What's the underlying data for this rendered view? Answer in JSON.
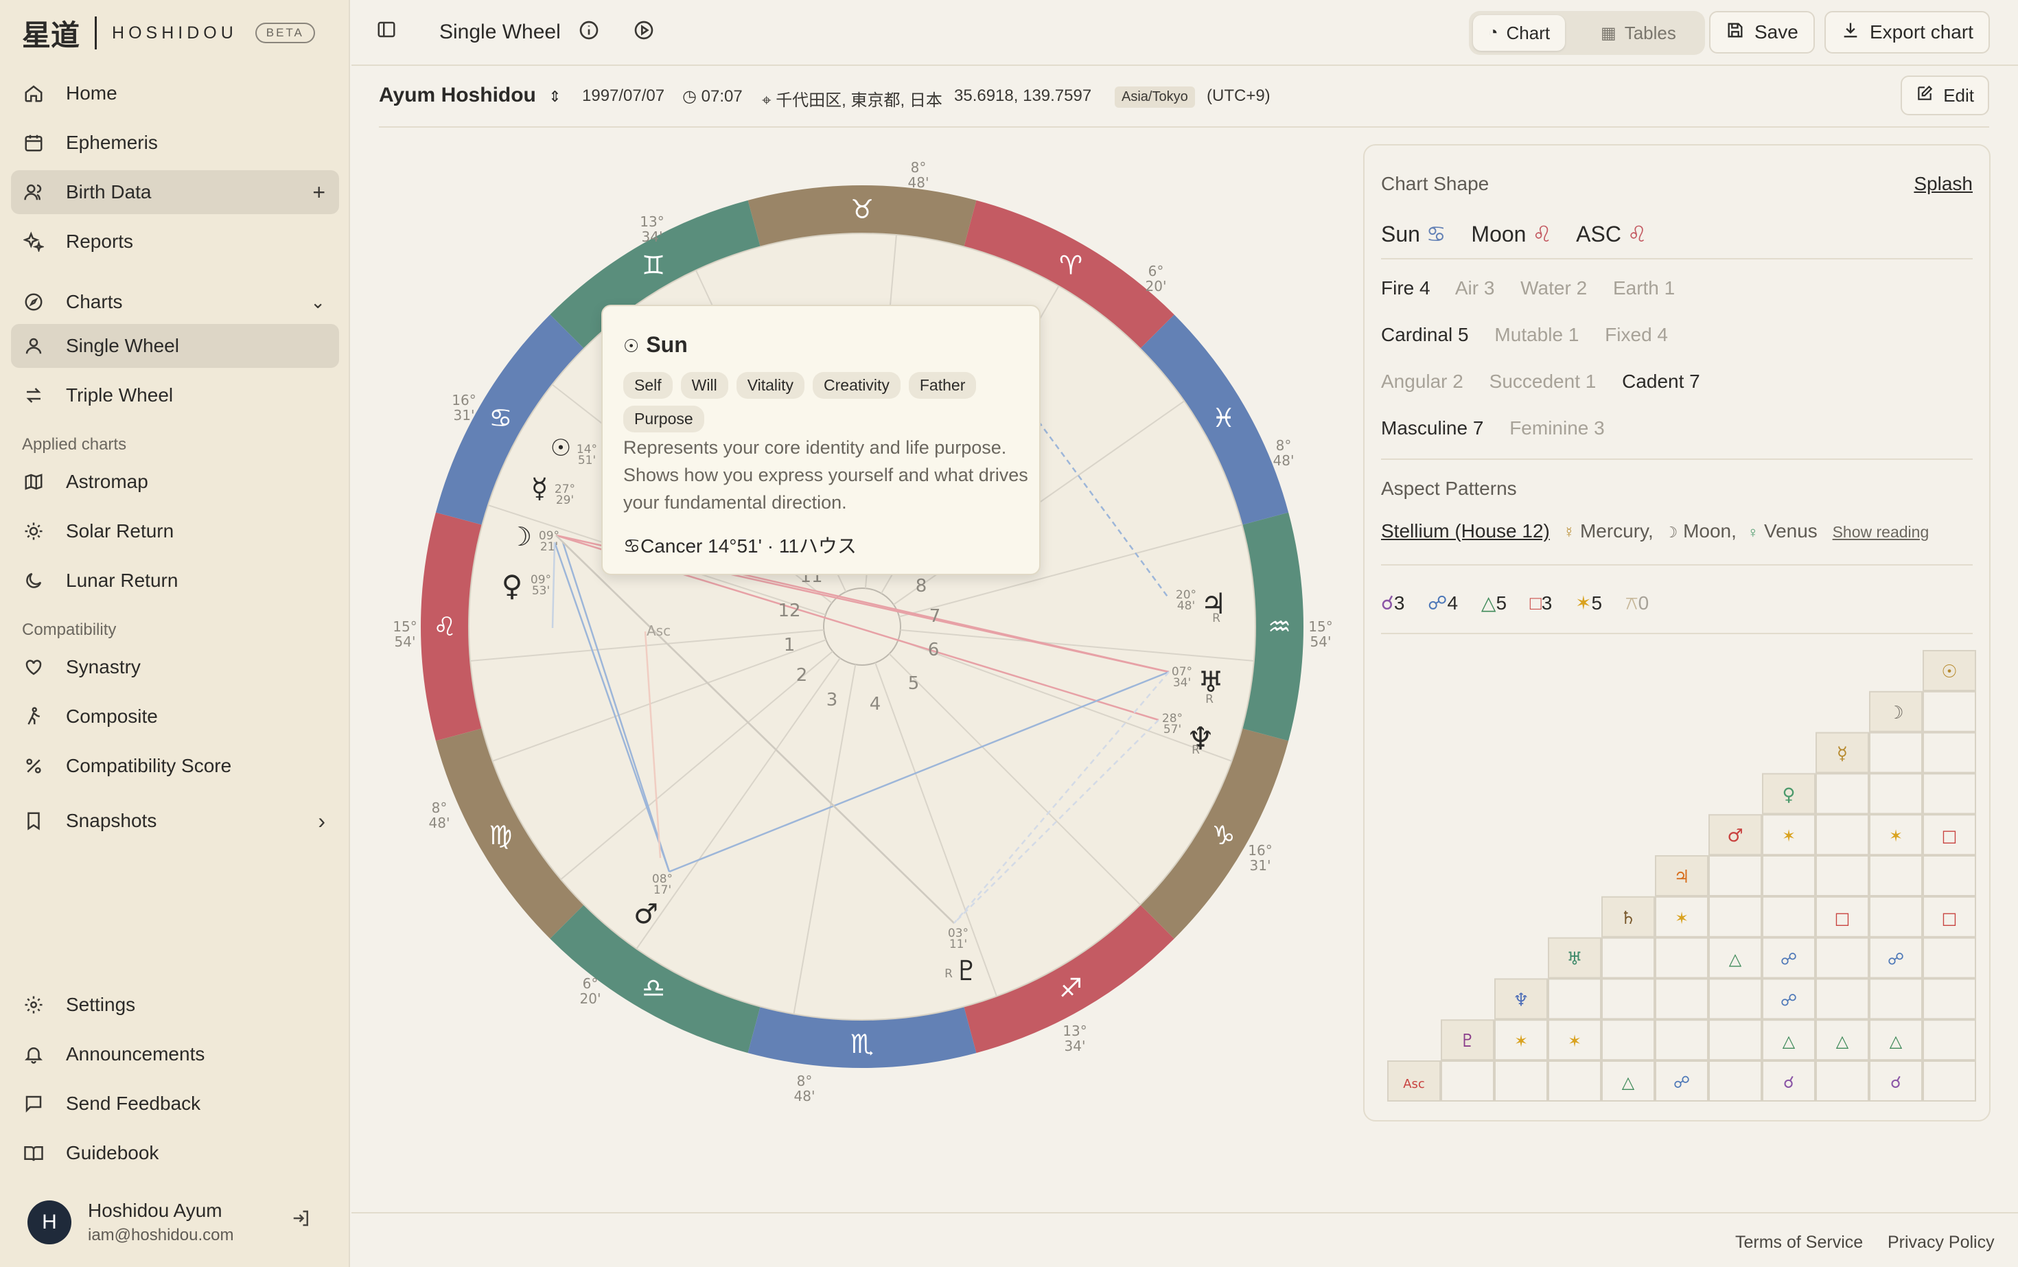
{
  "brand": {
    "kanji": "星道",
    "name": "HOSHIDOU",
    "badge": "BETA"
  },
  "sidebar": {
    "items": [
      {
        "label": "Home",
        "icon": "home-icon"
      },
      {
        "label": "Ephemeris",
        "icon": "calendar-icon"
      },
      {
        "label": "Birth Data",
        "icon": "users-icon",
        "active": true
      },
      {
        "label": "Reports",
        "icon": "sparkle-icon"
      },
      {
        "label": "Charts",
        "icon": "compass-icon"
      },
      {
        "label": "Single Wheel",
        "icon": "user-icon",
        "active": true
      },
      {
        "label": "Triple Wheel",
        "icon": "swap-icon"
      },
      {
        "label": "Astromap",
        "icon": "map-icon"
      },
      {
        "label": "Solar Return",
        "icon": "sun-icon"
      },
      {
        "label": "Lunar Return",
        "icon": "moon-icon"
      },
      {
        "label": "Synastry",
        "icon": "heart-icon"
      },
      {
        "label": "Composite",
        "icon": "person-icon"
      },
      {
        "label": "Compatibility Score",
        "icon": "percent-icon"
      },
      {
        "label": "Snapshots",
        "icon": "bookmark-icon"
      },
      {
        "label": "Settings",
        "icon": "gear-icon"
      },
      {
        "label": "Announcements",
        "icon": "bell-icon"
      },
      {
        "label": "Send Feedback",
        "icon": "message-icon"
      },
      {
        "label": "Guidebook",
        "icon": "book-icon"
      }
    ],
    "sections": [
      "Applied charts",
      "Compatibility"
    ],
    "user": {
      "initial": "H",
      "name": "Hoshidou Ayum",
      "email": "iam@hoshidou.com"
    }
  },
  "topbar": {
    "title": "Single Wheel",
    "tabs": [
      "Chart",
      "Tables"
    ],
    "save_label": "Save",
    "export_label": "Export chart"
  },
  "subject": {
    "name": "Ayum Hoshidou",
    "date": "1997/07/07",
    "time": "07:07",
    "place": "千代田区, 東京都, 日本",
    "coords": "35.6918, 139.7597",
    "tz": "Asia/Tokyo",
    "offset": "(UTC+9)",
    "edit_label": "Edit"
  },
  "wheel": {
    "cusp_labels": [
      {
        "deg": "8°",
        "min": "48'"
      },
      {
        "deg": "6°",
        "min": "20'"
      },
      {
        "deg": "8°",
        "min": "48'"
      },
      {
        "deg": "15°",
        "min": "54'"
      },
      {
        "deg": "16°",
        "min": "31'"
      },
      {
        "deg": "13°",
        "min": "34'"
      },
      {
        "deg": "8°",
        "min": "48'"
      },
      {
        "deg": "6°",
        "min": "20'"
      },
      {
        "deg": "8°",
        "min": "48'"
      },
      {
        "deg": "15°",
        "min": "54'"
      },
      {
        "deg": "16°",
        "min": "31'"
      },
      {
        "deg": "13°",
        "min": "34'"
      }
    ],
    "planet_degrees": [
      {
        "deg": "14°",
        "min": "51'"
      },
      {
        "deg": "27°",
        "min": "29'"
      },
      {
        "deg": "09°",
        "min": "21'"
      },
      {
        "deg": "09°",
        "min": "53'"
      },
      {
        "deg": "20°",
        "min": "48'"
      },
      {
        "deg": "07°",
        "min": "34'"
      },
      {
        "deg": "28°",
        "min": "57'"
      },
      {
        "deg": "08°",
        "min": "17'"
      },
      {
        "deg": "03°",
        "min": "11'"
      }
    ],
    "house_numbers": [
      "12",
      "1",
      "2",
      "3",
      "4",
      "5",
      "6",
      "7",
      "8",
      "11"
    ],
    "retro": "R",
    "asc_label": "Asc"
  },
  "tooltip": {
    "title": "Sun",
    "tags": [
      "Self",
      "Will",
      "Vitality",
      "Creativity",
      "Father",
      "Purpose"
    ],
    "description": "Represents your core identity and life purpose. Shows how you express yourself and what drives your fundamental direction.",
    "position": "♋Cancer 14°51' · 11ハウス"
  },
  "panel": {
    "shape_label": "Chart Shape",
    "shape_value": "Splash",
    "big_three": [
      {
        "name": "Sun",
        "sign": "♋"
      },
      {
        "name": "Moon",
        "sign": "♌"
      },
      {
        "name": "ASC",
        "sign": "♌"
      }
    ],
    "elements": [
      "Fire 4",
      "Air 3",
      "Water 2",
      "Earth 1"
    ],
    "modalities": [
      "Cardinal 5",
      "Mutable 1",
      "Fixed 4"
    ],
    "houses": [
      "Angular 2",
      "Succedent 1",
      "Cadent 7"
    ],
    "polarity": [
      "Masculine 7",
      "Feminine 3"
    ],
    "aspect_patterns_label": "Aspect Patterns",
    "stellium": "Stellium (House 12)",
    "stellium_planets": [
      "Mercury,",
      "Moon,",
      "Venus"
    ],
    "show_reading": "Show reading",
    "aspect_counts": [
      "3",
      "4",
      "5",
      "3",
      "5",
      "0"
    ]
  },
  "footer": {
    "terms": "Terms of Service",
    "privacy": "Privacy Policy"
  },
  "colors": {
    "fire": "#c45b63",
    "earth": "#9a8567",
    "air": "#5a8e7c",
    "water": "#6381b5"
  }
}
